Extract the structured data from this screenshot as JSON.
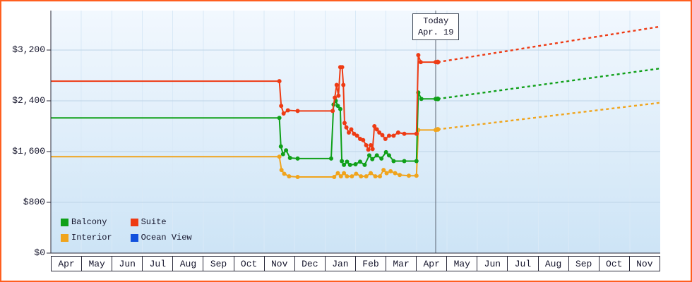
{
  "frame": {
    "border_color": "#ff5f1f",
    "background": "#ffffff"
  },
  "chart_data": {
    "type": "line",
    "title": "",
    "x_axis": {
      "tick_labels": [
        "Apr",
        "May",
        "Jun",
        "Jul",
        "Aug",
        "Sep",
        "Oct",
        "Nov",
        "Dec",
        "Jan",
        "Feb",
        "Mar",
        "Apr",
        "May",
        "Jun",
        "Jul",
        "Aug",
        "Sep",
        "Oct",
        "Nov"
      ],
      "range": [
        0,
        20
      ]
    },
    "y_axis": {
      "ticks": [
        0,
        800,
        1600,
        2400,
        3200
      ],
      "tick_labels": [
        "$0",
        "$800",
        "$1,600",
        "$2,400",
        "$3,200"
      ],
      "range": [
        0,
        3822
      ],
      "unit": "USD"
    },
    "grid": true,
    "legend_position": "bottom-left",
    "today": {
      "x": 12.63,
      "label_line1": "Today",
      "label_line2": "Apr. 19"
    },
    "series": [
      {
        "name": "Balcony",
        "color": "#10a019",
        "points": [
          [
            0,
            2130
          ],
          [
            7.5,
            2130
          ],
          [
            7.55,
            1680
          ],
          [
            7.62,
            1560
          ],
          [
            7.72,
            1620
          ],
          [
            7.85,
            1500
          ],
          [
            8.1,
            1490
          ],
          [
            9.2,
            1490
          ],
          [
            9.28,
            2340
          ],
          [
            9.35,
            2400
          ],
          [
            9.42,
            2320
          ],
          [
            9.5,
            2270
          ],
          [
            9.55,
            1450
          ],
          [
            9.62,
            1390
          ],
          [
            9.72,
            1440
          ],
          [
            9.82,
            1390
          ],
          [
            10.0,
            1400
          ],
          [
            10.15,
            1440
          ],
          [
            10.3,
            1390
          ],
          [
            10.45,
            1540
          ],
          [
            10.55,
            1480
          ],
          [
            10.7,
            1540
          ],
          [
            10.85,
            1490
          ],
          [
            11.0,
            1590
          ],
          [
            11.1,
            1540
          ],
          [
            11.25,
            1450
          ],
          [
            11.6,
            1450
          ],
          [
            12.0,
            1450
          ],
          [
            12.06,
            2530
          ],
          [
            12.16,
            2430
          ],
          [
            12.63,
            2430
          ]
        ]
      },
      {
        "name": "Suite",
        "color": "#ee3b14",
        "points": [
          [
            0,
            2710
          ],
          [
            7.5,
            2710
          ],
          [
            7.56,
            2320
          ],
          [
            7.64,
            2200
          ],
          [
            7.78,
            2250
          ],
          [
            8.1,
            2240
          ],
          [
            9.25,
            2240
          ],
          [
            9.32,
            2450
          ],
          [
            9.38,
            2650
          ],
          [
            9.44,
            2480
          ],
          [
            9.5,
            2930
          ],
          [
            9.56,
            2930
          ],
          [
            9.6,
            2650
          ],
          [
            9.64,
            2050
          ],
          [
            9.7,
            1980
          ],
          [
            9.78,
            1900
          ],
          [
            9.86,
            1950
          ],
          [
            9.95,
            1880
          ],
          [
            10.05,
            1850
          ],
          [
            10.15,
            1800
          ],
          [
            10.25,
            1780
          ],
          [
            10.35,
            1700
          ],
          [
            10.42,
            1630
          ],
          [
            10.5,
            1700
          ],
          [
            10.56,
            1640
          ],
          [
            10.62,
            2000
          ],
          [
            10.7,
            1950
          ],
          [
            10.78,
            1900
          ],
          [
            10.88,
            1860
          ],
          [
            10.98,
            1800
          ],
          [
            11.1,
            1850
          ],
          [
            11.25,
            1850
          ],
          [
            11.4,
            1900
          ],
          [
            11.6,
            1880
          ],
          [
            12.0,
            1880
          ],
          [
            12.06,
            3120
          ],
          [
            12.14,
            3010
          ],
          [
            12.63,
            3010
          ]
        ]
      },
      {
        "name": "Interior",
        "color": "#f0a41c",
        "points": [
          [
            0,
            1520
          ],
          [
            7.5,
            1520
          ],
          [
            7.57,
            1310
          ],
          [
            7.66,
            1250
          ],
          [
            7.82,
            1210
          ],
          [
            8.1,
            1200
          ],
          [
            9.3,
            1200
          ],
          [
            9.42,
            1260
          ],
          [
            9.52,
            1210
          ],
          [
            9.62,
            1260
          ],
          [
            9.72,
            1210
          ],
          [
            9.88,
            1210
          ],
          [
            10.02,
            1250
          ],
          [
            10.18,
            1210
          ],
          [
            10.35,
            1210
          ],
          [
            10.5,
            1260
          ],
          [
            10.65,
            1210
          ],
          [
            10.8,
            1210
          ],
          [
            10.92,
            1310
          ],
          [
            11.02,
            1260
          ],
          [
            11.15,
            1290
          ],
          [
            11.3,
            1260
          ],
          [
            11.45,
            1230
          ],
          [
            11.75,
            1220
          ],
          [
            12.0,
            1220
          ],
          [
            12.06,
            1940
          ],
          [
            12.63,
            1940
          ]
        ]
      },
      {
        "name": "Ocean View",
        "color": "#1150dd",
        "points": []
      }
    ],
    "predictions": [
      {
        "name": "Balcony",
        "color": "#10a019",
        "points": [
          [
            12.7,
            2430
          ],
          [
            20,
            2910
          ]
        ]
      },
      {
        "name": "Suite",
        "color": "#ee3b14",
        "points": [
          [
            12.7,
            3010
          ],
          [
            20,
            3570
          ]
        ]
      },
      {
        "name": "Interior",
        "color": "#f0a41c",
        "points": [
          [
            12.7,
            1950
          ],
          [
            20,
            2370
          ]
        ]
      }
    ],
    "colors": {
      "plot_bg_top": "#f2f8fe",
      "plot_bg_bottom": "#cde4f6",
      "grid_horizontal": "#bdd4e7",
      "grid_vertical": "#d9e9f7",
      "axis": "#2a2a3a",
      "today_line": "#5a6472",
      "text": "#14142b"
    }
  }
}
